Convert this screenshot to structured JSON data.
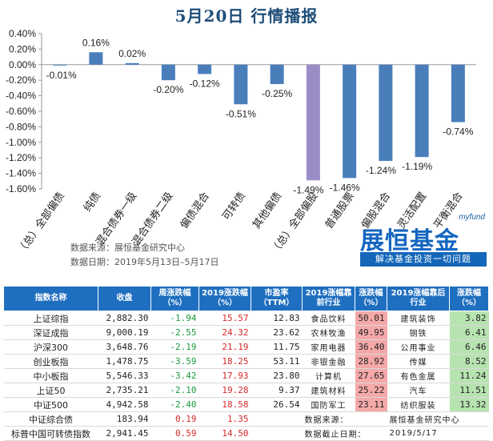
{
  "title": "5月20日  行情播报",
  "chart_data": {
    "type": "bar",
    "categories": [
      "（总）全部偏债",
      "纯债",
      "混合债券一级",
      "混合债券二级",
      "偏债混合",
      "可转债",
      "其他偏债",
      "（总）全部偏股",
      "普通股票",
      "偏股混合",
      "灵活配置",
      "平衡混合"
    ],
    "values": [
      -0.01,
      0.16,
      0.02,
      -0.2,
      -0.12,
      -0.51,
      -0.25,
      -1.49,
      -1.46,
      -1.24,
      -1.19,
      -0.74
    ],
    "value_labels": [
      "-0.01%",
      "0.16%",
      "0.02%",
      "-0.20%",
      "-0.12%",
      "-0.51%",
      "-0.25%",
      "-1.49%",
      "-1.46%",
      "-1.24%",
      "-1.19%",
      "-0.74%"
    ],
    "highlight_index": 7,
    "ylim": [
      -1.6,
      0.4
    ],
    "yticks": [
      0.4,
      0.2,
      0.0,
      -0.2,
      -0.4,
      -0.6,
      -0.8,
      -1.0,
      -1.2,
      -1.4,
      -1.6
    ],
    "ytick_labels": [
      "0.40%",
      "0.20%",
      "0.00%",
      "-0.20%",
      "-0.40%",
      "-0.60%",
      "-0.80%",
      "-1.00%",
      "-1.20%",
      "-1.40%",
      "-1.60%"
    ],
    "colors": {
      "bar": "#4a7ebb",
      "highlight": "#9a8dc6"
    }
  },
  "source_note": "数据来源：展恒基金研究中心",
  "date_note": "数据日期：2019年5月13日–5月17日",
  "brand": {
    "name": "展恒基金",
    "en": "myfund",
    "slogan": "解决基金投资一切问题"
  },
  "table": {
    "headers": [
      "指数名称",
      "收盘",
      "周涨跌幅（%）",
      "2019涨跌幅（%）",
      "市盈率（TTM）",
      "2019涨幅靠前行业",
      "涨跌幅（%）",
      "2019涨幅靠后行业",
      "涨跌幅（%）"
    ],
    "rows": [
      {
        "name": "上证综指",
        "close": "2,882.30",
        "week": "-1.94",
        "ytd": "15.57",
        "pe": "12.83",
        "top": "食品饮料",
        "top_v": "50.01",
        "bot": "建筑装饰",
        "bot_v": "3.82"
      },
      {
        "name": "深证成指",
        "close": "9,000.19",
        "week": "-2.55",
        "ytd": "24.32",
        "pe": "23.62",
        "top": "农林牧渔",
        "top_v": "49.95",
        "bot": "钢铁",
        "bot_v": "6.41"
      },
      {
        "name": "沪深300",
        "close": "3,648.76",
        "week": "-2.19",
        "ytd": "21.19",
        "pe": "11.75",
        "top": "家用电器",
        "top_v": "36.40",
        "bot": "公用事业",
        "bot_v": "6.46"
      },
      {
        "name": "创业板指",
        "close": "1,478.75",
        "week": "-3.59",
        "ytd": "18.25",
        "pe": "53.11",
        "top": "非银金融",
        "top_v": "28.92",
        "bot": "传媒",
        "bot_v": "8.52"
      },
      {
        "name": "中小板指",
        "close": "5,546.33",
        "week": "-3.42",
        "ytd": "17.93",
        "pe": "23.80",
        "top": "计算机",
        "top_v": "27.65",
        "bot": "有色金属",
        "bot_v": "11.24"
      },
      {
        "name": "上证50",
        "close": "2,735.21",
        "week": "-2.10",
        "ytd": "19.28",
        "pe": "9.37",
        "top": "建筑材料",
        "top_v": "25.22",
        "bot": "汽车",
        "bot_v": "11.51"
      },
      {
        "name": "中证500",
        "close": "4,942.58",
        "week": "-2.40",
        "ytd": "18.58",
        "pe": "26.54",
        "top": "国防军工",
        "top_v": "23.11",
        "bot": "纺织服装",
        "bot_v": "13.32"
      },
      {
        "name": "中证综合债",
        "close": "183.94",
        "week": "0.19",
        "ytd": "1.35",
        "pe": ""
      },
      {
        "name": "标普中国可转债指数",
        "close": "2,941.45",
        "week": "0.59",
        "ytd": "14.50",
        "pe": ""
      }
    ],
    "foot_source_label": "数据来源：",
    "foot_source_value": "展恒基金研究中心",
    "foot_date_label": "数据截止日期：",
    "foot_date_value": "2019/5/17"
  }
}
